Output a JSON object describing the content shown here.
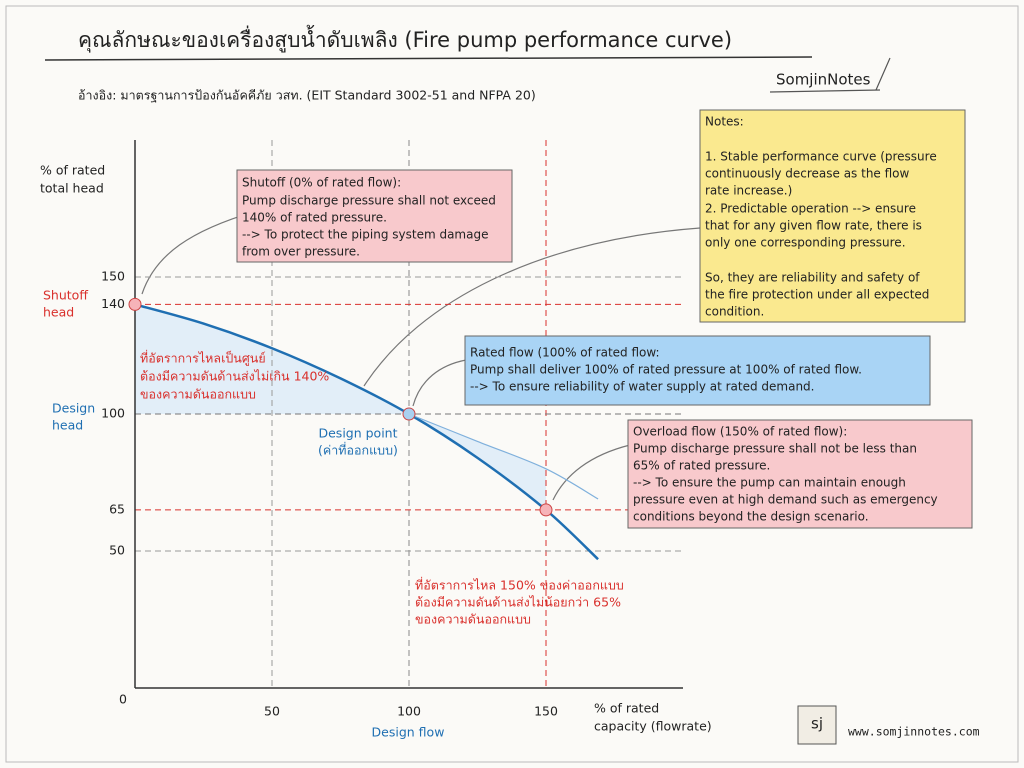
{
  "chart_data": {
    "type": "line",
    "title": "คุณลักษณะของเครื่องสูบน้ำดับเพลิง (Fire pump performance curve)",
    "subtitle": "อ้างอิง: มาตรฐานการป้องกันอัคคีภัย วสท. (EIT Standard 3002-51 and NFPA 20)",
    "brand": "SomjinNotes",
    "logo": "sj",
    "website": "www.somjinnotes.com",
    "y_label": [
      "% of rated",
      "total head"
    ],
    "x_label": [
      "% of rated",
      "capacity (flowrate)"
    ],
    "shutoff_head_label": [
      "Shutoff",
      "head"
    ],
    "design_head_label": [
      "Design",
      "head"
    ],
    "design_flow_label": "Design flow",
    "design_point_label": [
      "Design point",
      "(ค่าที่ออกแบบ)"
    ],
    "x": [
      0,
      25,
      50,
      75,
      100,
      125,
      150,
      169
    ],
    "series": [
      {
        "color": "#1f6fb2",
        "values": [
          140,
          133,
          124,
          113,
          100,
          84,
          65,
          47
        ]
      },
      {
        "color": "#7fb0dc",
        "values": [
          null,
          null,
          null,
          null,
          100,
          90,
          80,
          69
        ]
      }
    ],
    "highlights": [
      {
        "x": 0,
        "y": 140,
        "color": "#f6b3b8"
      },
      {
        "x": 100,
        "y": 100,
        "color": "#a9d0f0"
      },
      {
        "x": 150,
        "y": 65,
        "color": "#f6b3b8"
      }
    ],
    "xlim": [
      0,
      200
    ],
    "ylim": [
      0,
      200
    ],
    "xticks": [
      0,
      50,
      100,
      150
    ],
    "yticks": [
      50,
      65,
      100,
      140,
      150
    ],
    "xtick_colors": [
      "#333333",
      "#333333",
      "#1f6fb2",
      "#d9302c"
    ],
    "ytick_colors": [
      "#333333",
      "#333333",
      "#1f6fb2",
      "#d9302c",
      "#333333"
    ],
    "xgrid_colors": [
      "#999999",
      "#999999",
      "#888888",
      "#d9302c"
    ],
    "ygrid_colors": [
      "#999999",
      "#d9302c",
      "#777777",
      "#d9302c",
      "#999999"
    ],
    "grid": true,
    "annotations": [
      {
        "lines": [
          "Shutoff (0% of rated flow):",
          "Pump discharge pressure shall not exceed",
          "140% of rated pressure.",
          "--> To protect the piping system damage",
          "from over pressure."
        ]
      },
      {
        "lines": [
          "Notes:",
          "1. Stable performance curve (pressure",
          "continuously decrease as the flow",
          "rate increase.)",
          "2. Predictable operation --> ensure",
          "that for any given flow rate, there is",
          "only one corresponding  pressure.",
          "So, they are reliability and safety of",
          "the fire protection under all expected",
          "condition."
        ]
      },
      {
        "lines": [
          "Rated flow (100% of rated flow:",
          "Pump shall deliver 100% of rated pressure at 100% of rated flow.",
          "--> To ensure reliability of water supply at rated demand."
        ]
      },
      {
        "lines": [
          "Overload flow (150% of rated flow):",
          "Pump discharge pressure shall not be less than",
          "65% of rated pressure.",
          "--> To ensure the pump can maintain enough",
          "pressure even at high demand such as emergency",
          "conditions beyond the design scenario."
        ]
      }
    ],
    "thai_notes": [
      [
        "ที่อัตราการไหลเป็นศูนย์",
        "ต้องมีความดันด้านส่งไม่เกิน 140%",
        "ของความดันออกแบบ"
      ],
      [
        "ที่อัตราการไหล 150% ของค่าออกแบบ",
        "ต้องมีความดันด้านส่งไม่น้อยกว่า 65%",
        "ของความดันออกแบบ"
      ]
    ]
  }
}
